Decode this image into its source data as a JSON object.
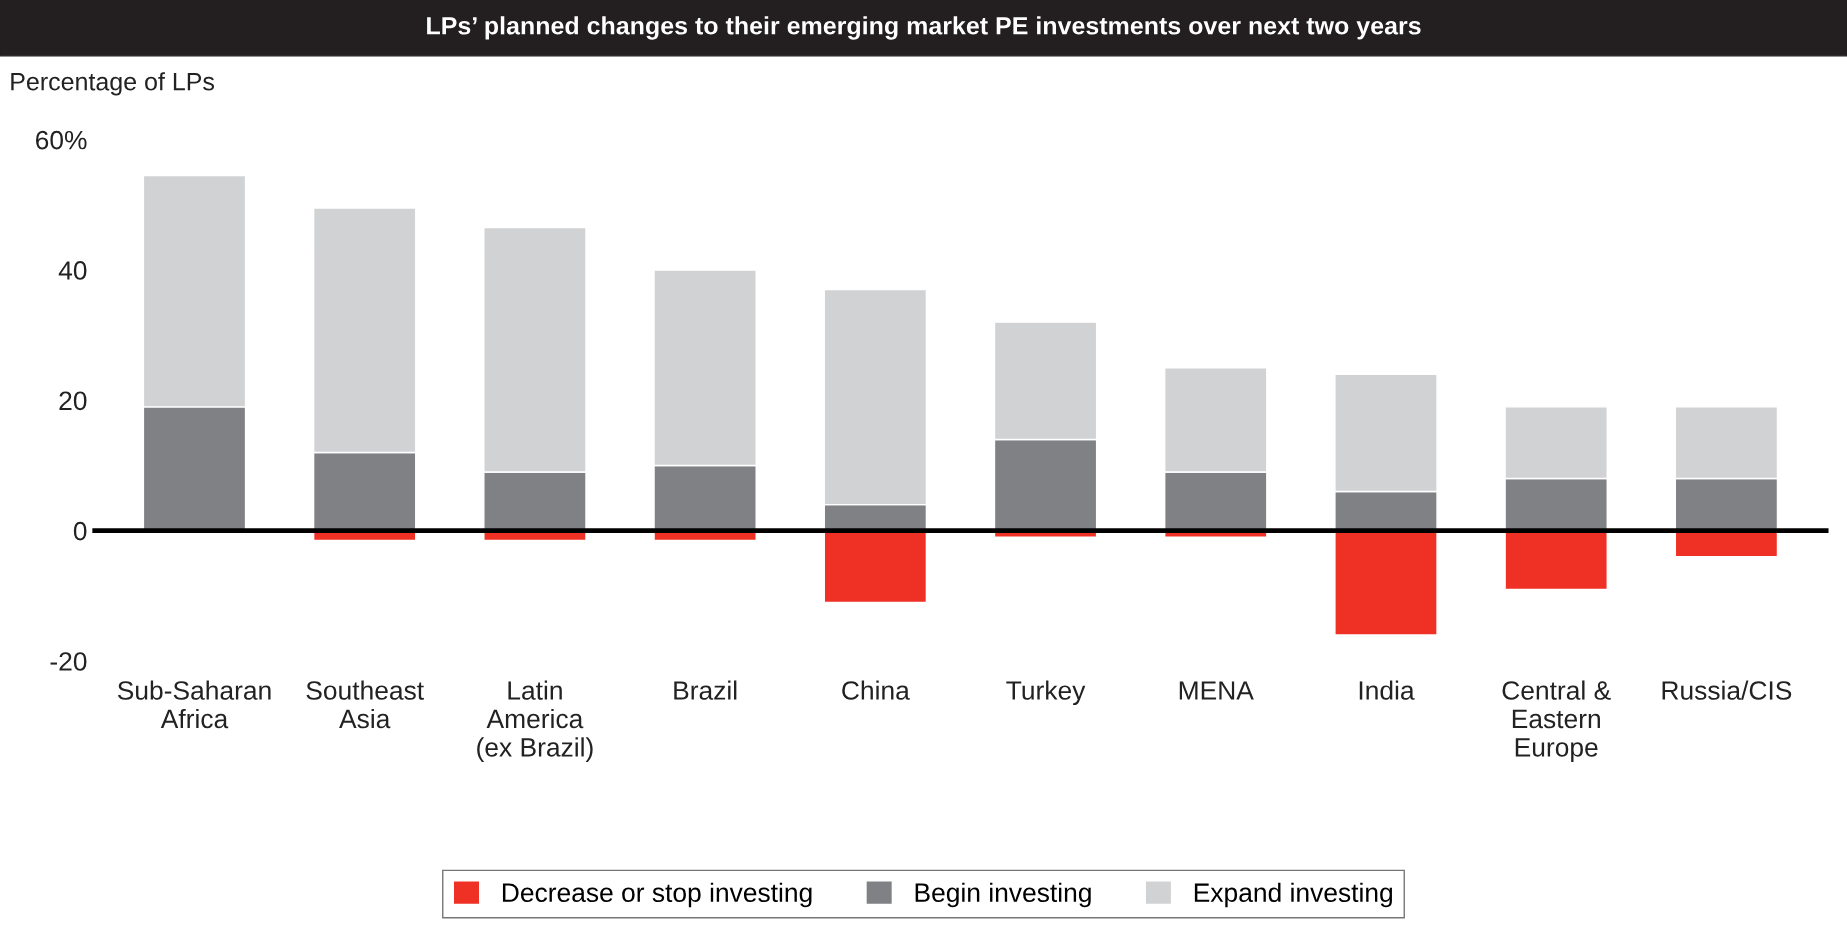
{
  "chart_data": {
    "type": "bar",
    "title": "LPs’ planned changes to their emerging market PE investments over next two years",
    "ylabel": "Percentage of LPs",
    "categories": [
      "Sub-Saharan\nAfrica",
      "Southeast\nAsia",
      "Latin\nAmerica\n(ex Brazil)",
      "Brazil",
      "China",
      "Turkey",
      "MENA",
      "India",
      "Central &\nEastern\nEurope",
      "Russia/CIS"
    ],
    "stacked": true,
    "series": [
      {
        "name": "Decrease or stop investing",
        "color": "#ee3124",
        "values": [
          0,
          -1.5,
          -1.5,
          -1.5,
          -11,
          -1,
          -1,
          -16,
          -9,
          -4
        ]
      },
      {
        "name": "Begin investing",
        "color": "#808184",
        "values": [
          19,
          12,
          9,
          10,
          4,
          14,
          9,
          6,
          8,
          8
        ]
      },
      {
        "name": "Expand investing",
        "color": "#d1d2d4",
        "values": [
          35.5,
          37.5,
          37.5,
          30,
          33,
          18,
          16,
          18,
          11,
          11
        ]
      }
    ],
    "ylim": [
      -20,
      60
    ],
    "yticks": [
      -20,
      0,
      20,
      40,
      {
        "value": 60,
        "label": "60%"
      }
    ],
    "ref_lines": [
      {
        "axis": "y",
        "value": 0,
        "color": "#000000"
      }
    ],
    "grid": false,
    "legend": "bottom"
  }
}
